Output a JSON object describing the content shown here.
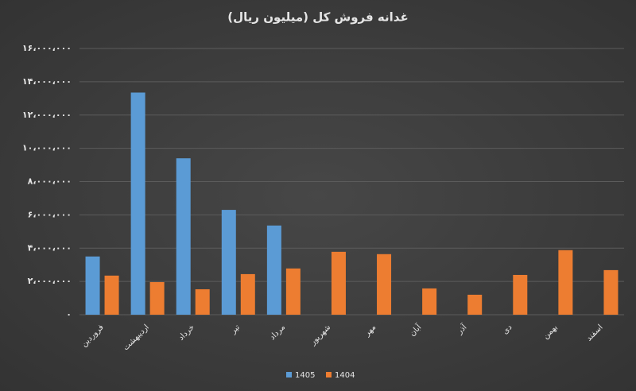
{
  "chart_data": {
    "type": "bar",
    "title": "غدانه فروش کل (میلیون ریال)",
    "categories": [
      "فروردین",
      "اردیبهشت",
      "خرداد",
      "تیر",
      "مرداد",
      "شهریور",
      "مهر",
      "آبان",
      "آذر",
      "دی",
      "بهمن",
      "اسفند"
    ],
    "series": [
      {
        "name": "1405",
        "color": "#5b9bd5",
        "values": [
          3500000,
          13350000,
          9400000,
          6300000,
          5360000,
          null,
          null,
          null,
          null,
          null,
          null,
          null
        ]
      },
      {
        "name": "1404",
        "color": "#ed7d31",
        "values": [
          2350000,
          1960000,
          1530000,
          2440000,
          2780000,
          3780000,
          3640000,
          1580000,
          1200000,
          2390000,
          3880000,
          2680000
        ]
      }
    ],
    "ylim": [
      0,
      16000000
    ],
    "yticks": [
      {
        "value": 0,
        "label": "۰"
      },
      {
        "value": 2000000,
        "label": "۲،۰۰۰،۰۰۰"
      },
      {
        "value": 4000000,
        "label": "۴،۰۰۰،۰۰۰"
      },
      {
        "value": 6000000,
        "label": "۶،۰۰۰،۰۰۰"
      },
      {
        "value": 8000000,
        "label": "۸،۰۰۰،۰۰۰"
      },
      {
        "value": 10000000,
        "label": "۱۰،۰۰۰،۰۰۰"
      },
      {
        "value": 12000000,
        "label": "۱۲،۰۰۰،۰۰۰"
      },
      {
        "value": 14000000,
        "label": "۱۴،۰۰۰،۰۰۰"
      },
      {
        "value": 16000000,
        "label": "۱۶،۰۰۰،۰۰۰"
      }
    ],
    "grid": true,
    "legend": "bottom"
  }
}
